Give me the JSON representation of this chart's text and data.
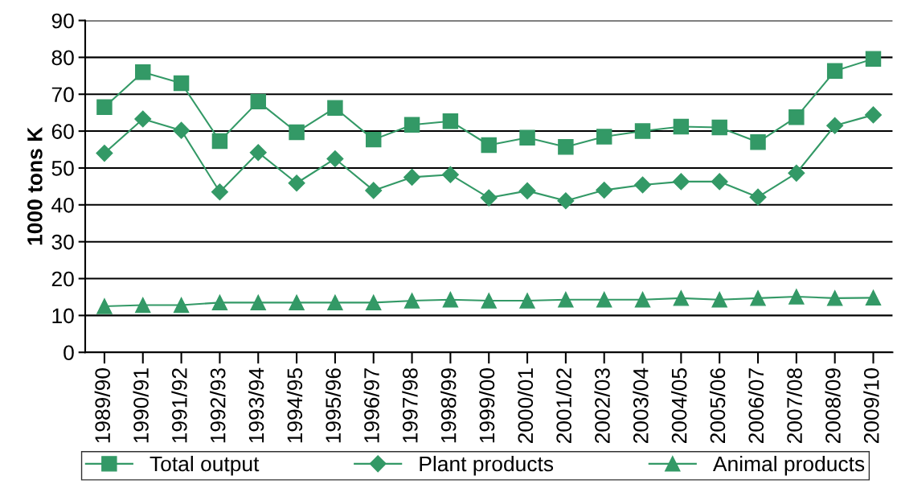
{
  "chart_data": {
    "type": "line",
    "ylabel": "1000 tons K",
    "categories": [
      "1989/90",
      "1990/91",
      "1991/92",
      "1992/93",
      "1993/94",
      "1994/95",
      "1995/96",
      "1996/97",
      "1997/98",
      "1998/99",
      "1999/00",
      "2000/01",
      "2001/02",
      "2002/03",
      "2003/04",
      "2004/05",
      "2005/06",
      "2006/07",
      "2007/08",
      "2008/09",
      "2009/10"
    ],
    "series": [
      {
        "name": "Total output",
        "color": "#339966",
        "marker": "square",
        "values": [
          66.5,
          76,
          73,
          57.3,
          68,
          59.7,
          66.3,
          57.7,
          61.7,
          62.7,
          56.2,
          58.2,
          55.7,
          58.5,
          60,
          61.2,
          61,
          57,
          63.8,
          76.3,
          79.6
        ]
      },
      {
        "name": "Plant products",
        "color": "#339966",
        "marker": "diamond",
        "values": [
          54,
          63.3,
          60.2,
          43.5,
          54.2,
          45.9,
          52.5,
          43.9,
          47.5,
          48.2,
          41.9,
          43.8,
          41.1,
          44,
          45.4,
          46.3,
          46.3,
          42.1,
          48.6,
          61.5,
          64.4
        ]
      },
      {
        "name": "Animal products",
        "color": "#339966",
        "marker": "triangle",
        "values": [
          12.5,
          12.8,
          12.8,
          13.5,
          13.5,
          13.5,
          13.5,
          13.5,
          14,
          14.3,
          14,
          14,
          14.3,
          14.3,
          14.3,
          14.7,
          14.3,
          14.7,
          15.1,
          14.7,
          14.8
        ]
      }
    ],
    "ylim": [
      0,
      90
    ],
    "yticks": [
      0,
      10,
      20,
      30,
      40,
      50,
      60,
      70,
      80,
      90
    ],
    "grid": "y",
    "legend": "bottom"
  }
}
